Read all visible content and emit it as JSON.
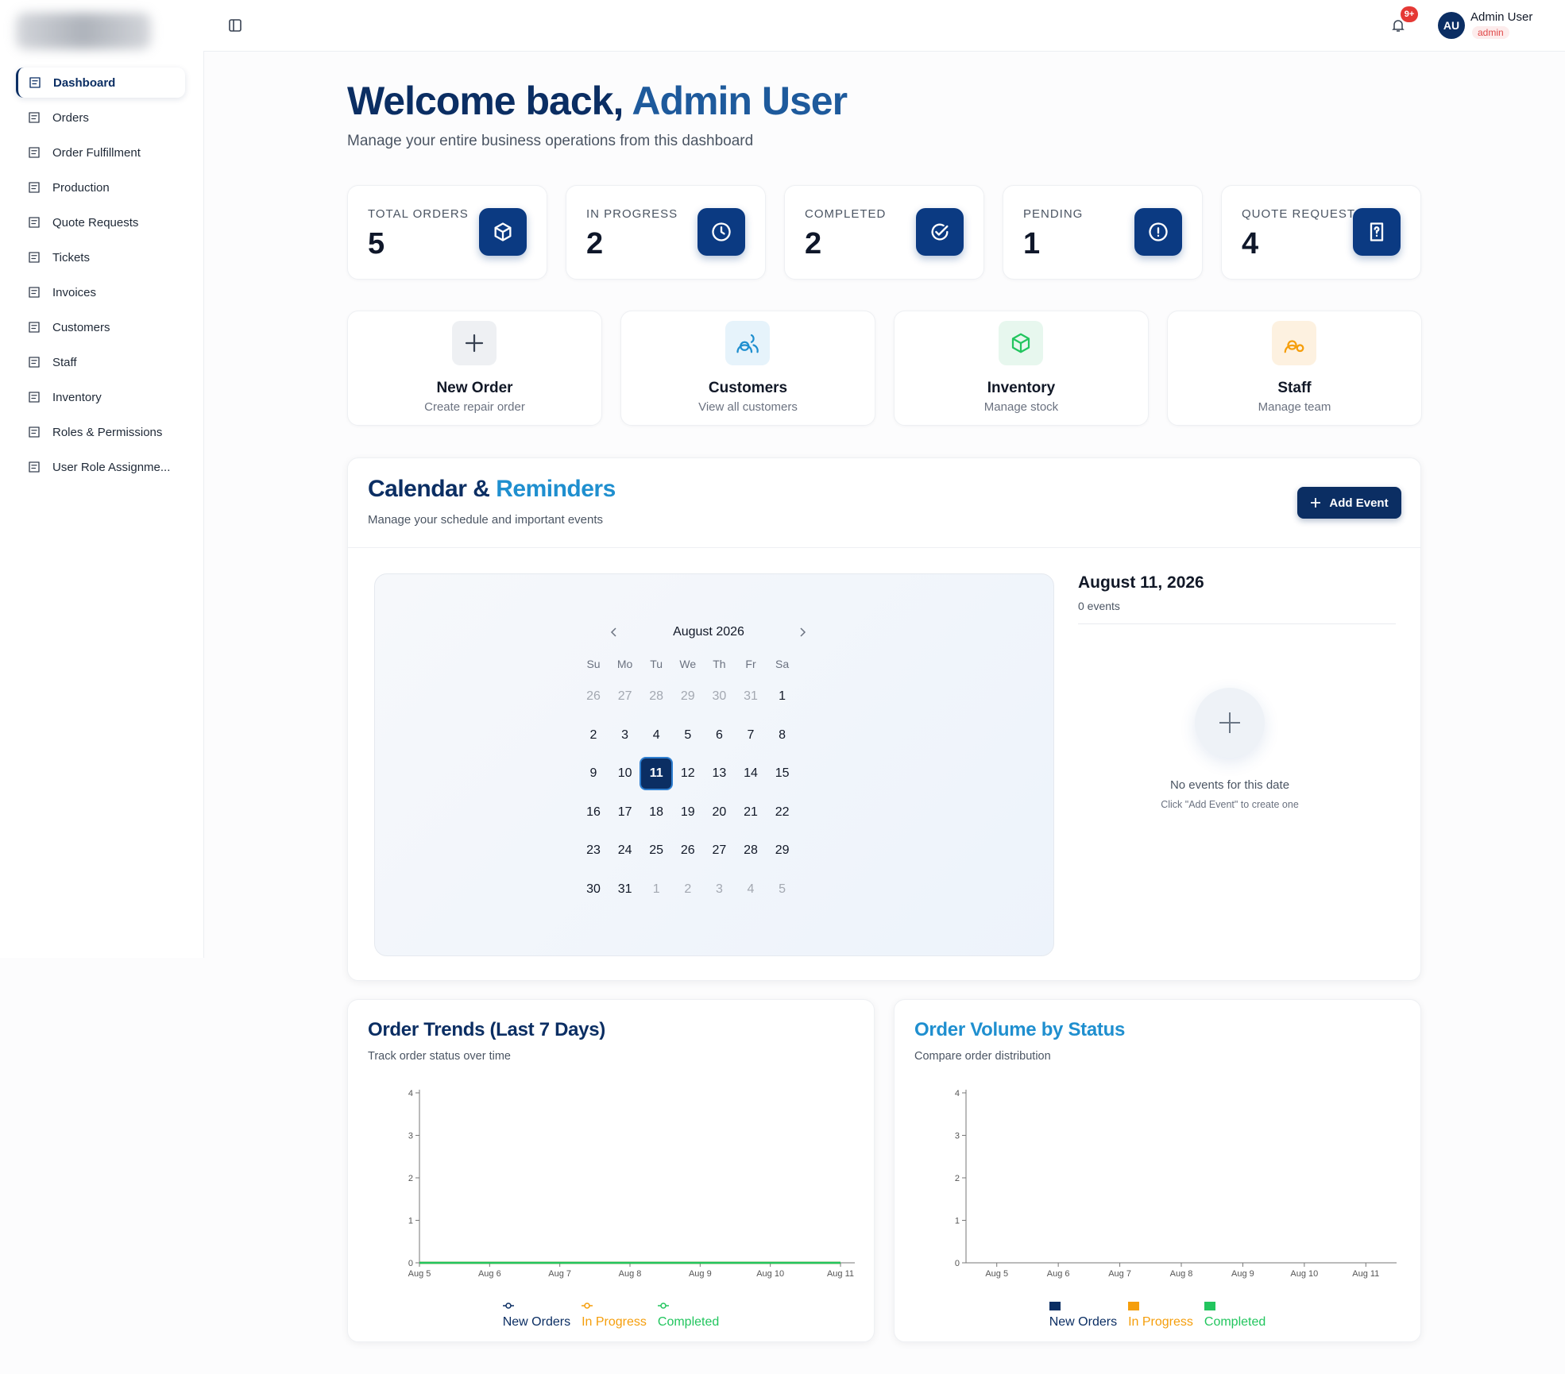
{
  "sidebar": {
    "nav": [
      "Dashboard",
      "Orders",
      "Order Fulfillment",
      "Production",
      "Quote Requests",
      "Tickets",
      "Invoices",
      "Customers",
      "Staff",
      "Inventory",
      "Roles & Permissions",
      "User Role Assignme..."
    ]
  },
  "topbar": {
    "notification_badge": "9+",
    "avatar": "AU",
    "user_name": "Admin User",
    "user_role": "admin"
  },
  "header": {
    "title_lead": "Welcome back,",
    "title_accent": "Admin User",
    "subtitle": "Manage your entire business operations from this dashboard"
  },
  "stats": [
    {
      "label": "TOTAL ORDERS",
      "value": 5
    },
    {
      "label": "IN PROGRESS",
      "value": 2
    },
    {
      "label": "COMPLETED",
      "value": 2
    },
    {
      "label": "PENDING",
      "value": 1
    },
    {
      "label": "QUOTE REQUESTS",
      "value": 4
    }
  ],
  "quick_actions": [
    {
      "title": "New Order",
      "subtitle": "Create repair order"
    },
    {
      "title": "Customers",
      "subtitle": "View all customers"
    },
    {
      "title": "Inventory",
      "subtitle": "Manage stock"
    },
    {
      "title": "Staff",
      "subtitle": "Manage team"
    }
  ],
  "calendar": {
    "title_lead": "Calendar &",
    "title_accent": "Reminders",
    "subtitle": "Manage your schedule and important events",
    "add_button": "Add Event",
    "month_label": "August 2026",
    "weekdays": [
      "Su",
      "Mo",
      "Tu",
      "We",
      "Th",
      "Fr",
      "Sa"
    ],
    "prev_month_days": [
      26,
      27,
      28,
      29,
      30,
      31
    ],
    "days": [
      1,
      2,
      3,
      4,
      5,
      6,
      7,
      8,
      9,
      10,
      11,
      12,
      13,
      14,
      15,
      16,
      17,
      18,
      19,
      20,
      21,
      22,
      23,
      24,
      25,
      26,
      27,
      28,
      29,
      30,
      31
    ],
    "next_month_days": [
      1,
      2,
      3,
      4,
      5
    ],
    "selected_day": 11,
    "selected_date": "August 11, 2026",
    "events_count": "0 events",
    "empty_title": "No events for this date",
    "empty_hint": "Click \"Add Event\" to create one"
  },
  "chart_data": [
    {
      "type": "line",
      "title": "Order Trends (Last 7 Days)",
      "title_color": "#0b2e63",
      "subtitle": "Track order status over time",
      "categories": [
        "Aug 5",
        "Aug 6",
        "Aug 7",
        "Aug 8",
        "Aug 9",
        "Aug 10",
        "Aug 11"
      ],
      "series": [
        {
          "name": "New Orders",
          "color": "#0b2e63",
          "values": [
            0,
            0,
            0,
            0,
            0,
            0,
            0
          ]
        },
        {
          "name": "In Progress",
          "color": "#f59e0b",
          "values": [
            0,
            0,
            0,
            0,
            0,
            0,
            0
          ]
        },
        {
          "name": "Completed",
          "color": "#22c55e",
          "values": [
            0,
            0,
            0,
            0,
            0,
            0,
            0
          ]
        }
      ],
      "ylim": [
        0,
        4
      ],
      "yticks": [
        0,
        1,
        2,
        3,
        4
      ]
    },
    {
      "type": "bar",
      "title": "Order Volume by Status",
      "title_color": "#1f8fcf",
      "subtitle": "Compare order distribution",
      "categories": [
        "Aug 5",
        "Aug 6",
        "Aug 7",
        "Aug 8",
        "Aug 9",
        "Aug 10",
        "Aug 11"
      ],
      "series": [
        {
          "name": "New Orders",
          "color": "#0b2e63",
          "values": [
            0,
            0,
            0,
            0,
            0,
            0,
            0
          ]
        },
        {
          "name": "In Progress",
          "color": "#f59e0b",
          "values": [
            0,
            0,
            0,
            0,
            0,
            0,
            0
          ]
        },
        {
          "name": "Completed",
          "color": "#22c55e",
          "values": [
            0,
            0,
            0,
            0,
            0,
            0,
            0
          ]
        }
      ],
      "ylim": [
        0,
        4
      ],
      "yticks": [
        0,
        1,
        2,
        3,
        4
      ]
    }
  ]
}
